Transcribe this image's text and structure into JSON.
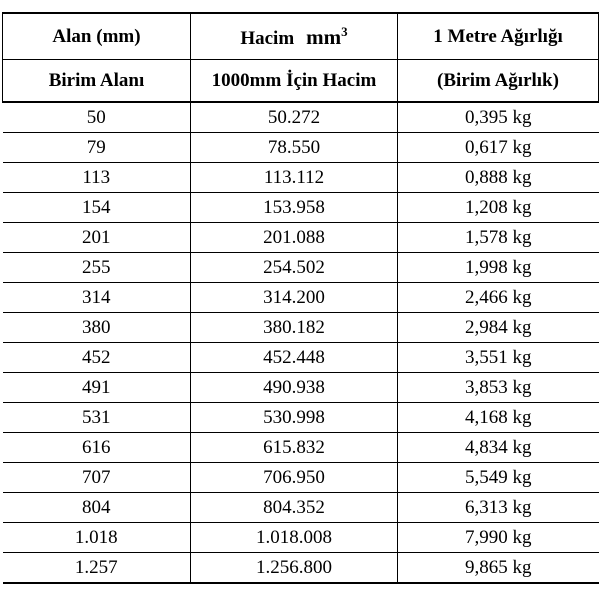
{
  "table": {
    "header": [
      [
        {
          "text": "Alan (mm)"
        },
        {
          "text": "Hacim",
          "unit": "mm",
          "exponent": "3"
        },
        {
          "text": "1 Metre Ağırlığı"
        }
      ],
      [
        {
          "text": "Birim Alanı"
        },
        {
          "text": "1000mm İçin Hacim"
        },
        {
          "text": "(Birim Ağırlık)"
        }
      ]
    ],
    "rows": [
      [
        "50",
        "50.272",
        "0,395 kg"
      ],
      [
        "79",
        "78.550",
        "0,617 kg"
      ],
      [
        "113",
        "113.112",
        "0,888 kg"
      ],
      [
        "154",
        "153.958",
        "1,208 kg"
      ],
      [
        "201",
        "201.088",
        "1,578 kg"
      ],
      [
        "255",
        "254.502",
        "1,998 kg"
      ],
      [
        "314",
        "314.200",
        "2,466 kg"
      ],
      [
        "380",
        "380.182",
        "2,984 kg"
      ],
      [
        "452",
        "452.448",
        "3,551 kg"
      ],
      [
        "491",
        "490.938",
        "3,853 kg"
      ],
      [
        "531",
        "530.998",
        "4,168 kg"
      ],
      [
        "616",
        "615.832",
        "4,834 kg"
      ],
      [
        "707",
        "706.950",
        "5,549 kg"
      ],
      [
        "804",
        "804.352",
        "6,313 kg"
      ],
      [
        "1.018",
        "1.018.008",
        "7,990 kg"
      ],
      [
        "1.257",
        "1.256.800",
        "9,865 kg"
      ]
    ]
  }
}
